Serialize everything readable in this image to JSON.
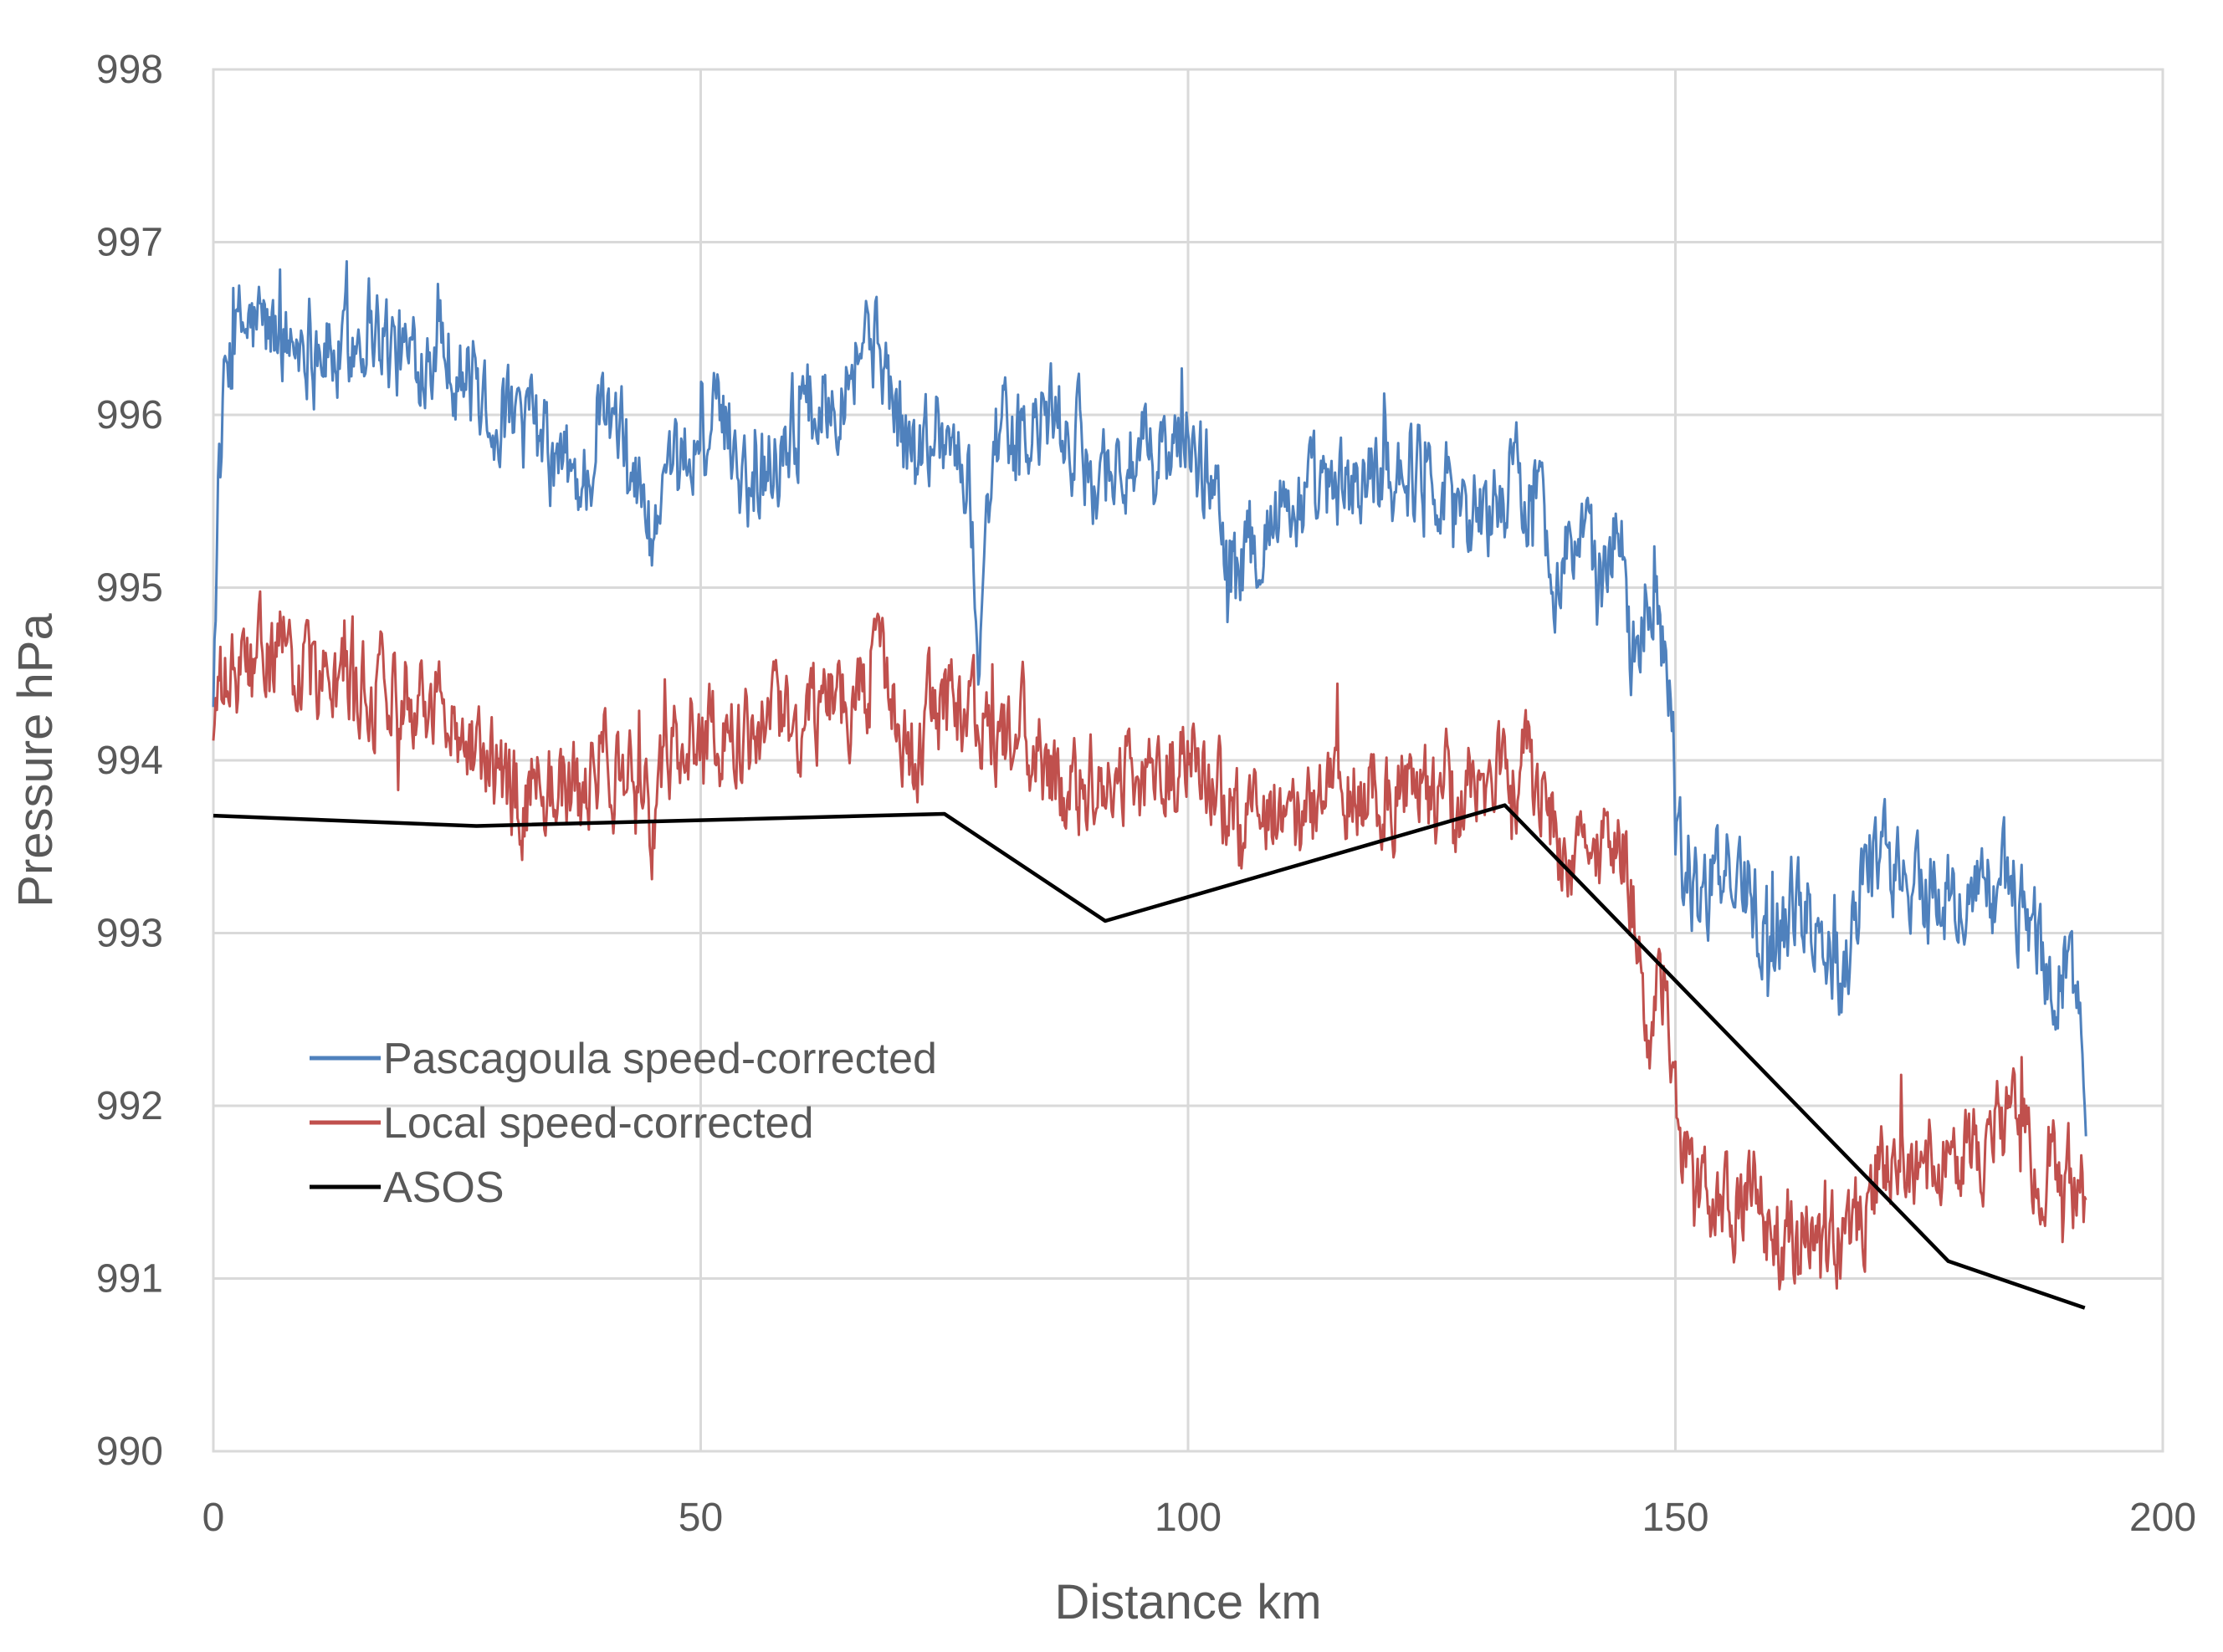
{
  "chart_data": {
    "type": "line",
    "title": "",
    "xlabel": "Distance km",
    "ylabel": "Pressure hPa",
    "xlim": [
      0,
      200
    ],
    "ylim": [
      990,
      998
    ],
    "x_ticks": [
      "0",
      "50",
      "100",
      "150",
      "200"
    ],
    "y_ticks": [
      "990",
      "991",
      "992",
      "993",
      "994",
      "995",
      "996",
      "997",
      "998"
    ],
    "grid": true,
    "legend_position": "lower-left",
    "series": [
      {
        "name": "Pascagoula speed-corrected",
        "color": "#4f81bd",
        "noise": 0.3,
        "x": [
          0,
          0.5,
          1.5,
          3,
          5,
          8,
          10,
          13,
          16,
          18,
          20,
          23,
          26,
          28,
          31,
          33,
          35,
          38,
          40,
          43,
          45,
          47,
          50,
          53,
          55,
          58,
          60,
          63,
          65,
          67,
          69,
          70,
          72,
          74,
          76,
          77.5,
          78.5,
          80,
          83,
          86,
          90,
          95,
          100,
          103,
          105,
          107,
          110,
          115,
          120,
          125,
          130,
          133,
          135,
          138,
          140,
          142,
          143.5,
          144.5,
          145.5,
          147,
          148,
          149.5,
          151,
          153,
          156,
          160,
          163,
          167,
          170,
          172,
          176,
          180,
          183,
          185,
          187,
          188,
          190,
          191.5,
          192.2
        ],
        "values": [
          994.5,
          995.6,
          996.3,
          996.5,
          996.5,
          996.4,
          996.5,
          996.3,
          996.6,
          996.4,
          996.3,
          996.5,
          996.2,
          996.1,
          995.9,
          995.9,
          995.7,
          995.6,
          996.0,
          995.7,
          995.3,
          995.5,
          995.9,
          995.9,
          995.6,
          995.8,
          996.0,
          996.1,
          996.3,
          996.5,
          996.3,
          996.0,
          995.7,
          996.0,
          995.8,
          995.6,
          994.7,
          995.9,
          995.8,
          996.0,
          995.7,
          995.7,
          995.8,
          995.6,
          995.0,
          995.3,
          995.5,
          995.5,
          995.7,
          995.7,
          995.4,
          995.6,
          995.6,
          995.1,
          995.3,
          995.0,
          995.2,
          995.5,
          994.5,
          995.0,
          995.1,
          994.3,
          993.3,
          993.2,
          993.4,
          993.0,
          993.2,
          992.8,
          993.5,
          993.4,
          993.2,
          993.2,
          993.3,
          993.2,
          993.0,
          992.7,
          992.8,
          992.6,
          991.8
        ]
      },
      {
        "name": "Local speed-corrected",
        "color": "#c0504d",
        "noise": 0.3,
        "x": [
          0,
          1,
          3,
          6,
          10,
          13,
          16,
          20,
          23,
          26,
          28,
          30,
          33,
          35,
          38,
          40,
          43,
          45,
          48,
          50,
          55,
          58,
          60,
          63,
          65,
          68,
          70,
          72,
          74,
          76,
          78,
          80,
          83,
          86,
          90,
          95,
          100,
          102,
          105,
          108,
          110,
          115,
          120,
          125,
          130,
          133,
          135,
          138,
          140,
          142,
          143.5,
          144.5,
          146,
          147.5,
          149,
          150.5,
          152,
          155,
          158,
          160,
          163,
          165,
          166,
          168,
          170,
          172,
          175,
          180,
          184,
          186,
          188,
          190,
          192.2
        ],
        "values": [
          994.2,
          994.4,
          994.5,
          994.6,
          994.5,
          994.4,
          994.4,
          994.5,
          994.3,
          994.2,
          994.0,
          993.8,
          993.8,
          993.9,
          993.7,
          994.1,
          993.8,
          993.7,
          994.1,
          994.2,
          994.1,
          994.2,
          994.2,
          994.4,
          994.4,
          994.5,
          994.2,
          993.9,
          994.4,
          994.2,
          994.3,
          994.1,
          994.2,
          993.8,
          993.9,
          993.9,
          994.0,
          994.0,
          993.6,
          993.6,
          993.5,
          993.9,
          993.8,
          993.8,
          993.8,
          994.0,
          993.9,
          993.6,
          993.4,
          993.5,
          993.5,
          993.6,
          993.0,
          992.4,
          992.8,
          991.8,
          991.4,
          991.3,
          991.5,
          991.2,
          991.3,
          991.0,
          991.2,
          991.2,
          991.5,
          991.8,
          991.7,
          991.8,
          991.9,
          991.7,
          991.7,
          991.6,
          991.5
        ]
      },
      {
        "name": "ASOS",
        "color": "#000000",
        "noise": 0,
        "x": [
          0,
          27,
          75,
          91.5,
          132.5,
          178,
          192
        ],
        "values": [
          993.68,
          993.62,
          993.69,
          993.07,
          993.74,
          991.1,
          990.83
        ]
      }
    ]
  }
}
